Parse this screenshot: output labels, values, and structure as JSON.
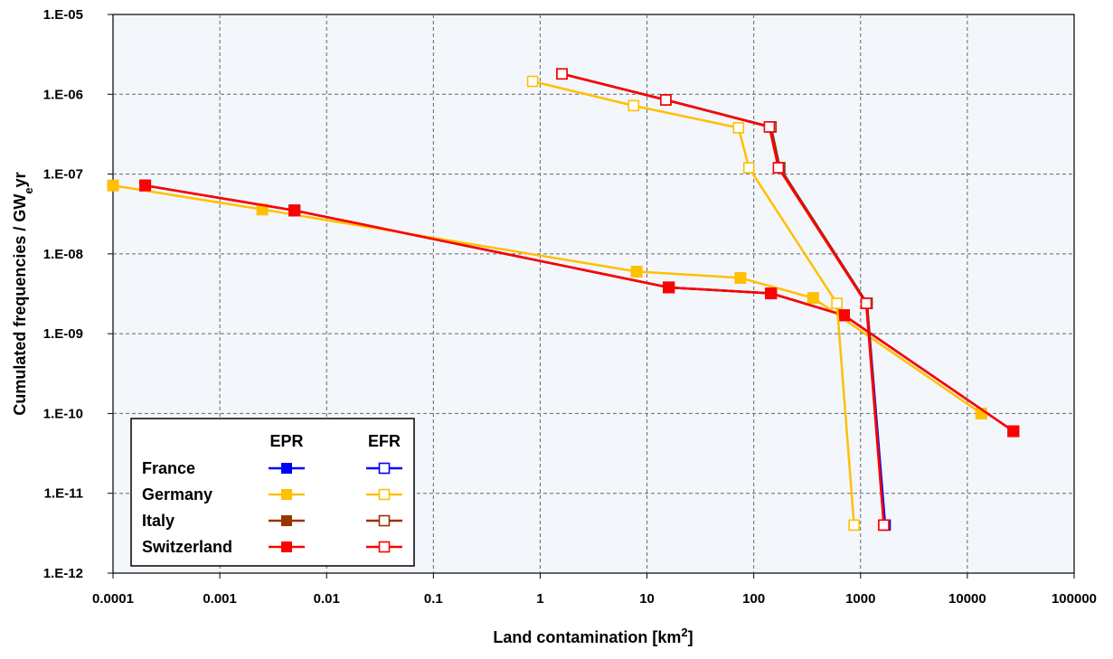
{
  "chart_data": {
    "type": "line",
    "x_scale": "log",
    "y_scale": "log",
    "xlim": [
      0.0001,
      100000
    ],
    "ylim": [
      1e-12,
      1e-05
    ],
    "grid": true,
    "xlabel": "Land contamination [km",
    "xlabel_sup": "2",
    "xlabel_end": "]",
    "ylabel": "Cumulated frequencies / GW",
    "ylabel_sub": "e",
    "ylabel_end": "yr",
    "x_tick_labels": [
      "0.0001",
      "0.001",
      "0.01",
      "0.1",
      "1",
      "10",
      "100",
      "1000",
      "10000",
      "100000"
    ],
    "y_tick_labels": [
      "1.E-12",
      "1.E-11",
      "1.E-10",
      "1.E-09",
      "1.E-08",
      "1.E-07",
      "1.E-06",
      "1.E-05"
    ],
    "legend": {
      "position": "bottom-left",
      "col_headers": [
        "EPR",
        "EFR"
      ],
      "rows": [
        "France",
        "Germany",
        "Italy",
        "Switzerland"
      ]
    },
    "colors": {
      "France": "#0000ff",
      "Germany": "#ffc000",
      "Italy": "#993300",
      "Switzerland": "#ff0000",
      "plot_bg": "#f3f6fb"
    },
    "series": [
      {
        "name": "France",
        "design": "EPR",
        "marker": "filled",
        "x": [
          0.0002,
          0.005,
          16,
          145,
          700,
          27000
        ],
        "y": [
          7.2e-08,
          3.5e-08,
          3.8e-09,
          3.2e-09,
          1.7e-09,
          6e-11
        ]
      },
      {
        "name": "Italy",
        "design": "EPR",
        "marker": "filled",
        "x": [
          0.0002,
          0.005,
          16,
          145,
          700,
          27000
        ],
        "y": [
          7.2e-08,
          3.5e-08,
          3.8e-09,
          3.2e-09,
          1.7e-09,
          6e-11
        ]
      },
      {
        "name": "Germany",
        "design": "EPR",
        "marker": "filled",
        "x": [
          0.0001,
          0.0025,
          8,
          75,
          360,
          13500
        ],
        "y": [
          7.2e-08,
          3.6e-08,
          6e-09,
          5e-09,
          2.8e-09,
          1e-10
        ]
      },
      {
        "name": "Switzerland",
        "design": "EPR",
        "marker": "filled",
        "x": [
          0.0002,
          0.005,
          16,
          145,
          700,
          27000
        ],
        "y": [
          7.2e-08,
          3.5e-08,
          3.8e-09,
          3.2e-09,
          1.7e-09,
          6e-11
        ]
      },
      {
        "name": "France",
        "design": "EFR",
        "marker": "open",
        "x": [
          1.6,
          15,
          145,
          175,
          1150,
          1700
        ],
        "y": [
          1.8e-06,
          8.5e-07,
          3.9e-07,
          1.2e-07,
          2.4e-09,
          4e-12
        ]
      },
      {
        "name": "Italy",
        "design": "EFR",
        "marker": "open",
        "x": [
          1.6,
          15,
          145,
          175,
          1150,
          1650
        ],
        "y": [
          1.8e-06,
          8.5e-07,
          3.9e-07,
          1.2e-07,
          2.4e-09,
          4e-12
        ]
      },
      {
        "name": "Germany",
        "design": "EFR",
        "marker": "open",
        "x": [
          0.85,
          7.5,
          72,
          90,
          600,
          870
        ],
        "y": [
          1.45e-06,
          7.2e-07,
          3.8e-07,
          1.2e-07,
          2.4e-09,
          4e-12
        ]
      },
      {
        "name": "Switzerland",
        "design": "EFR",
        "marker": "open",
        "x": [
          1.6,
          15,
          140,
          170,
          1130,
          1650
        ],
        "y": [
          1.8e-06,
          8.5e-07,
          3.9e-07,
          1.2e-07,
          2.4e-09,
          4e-12
        ]
      }
    ]
  }
}
